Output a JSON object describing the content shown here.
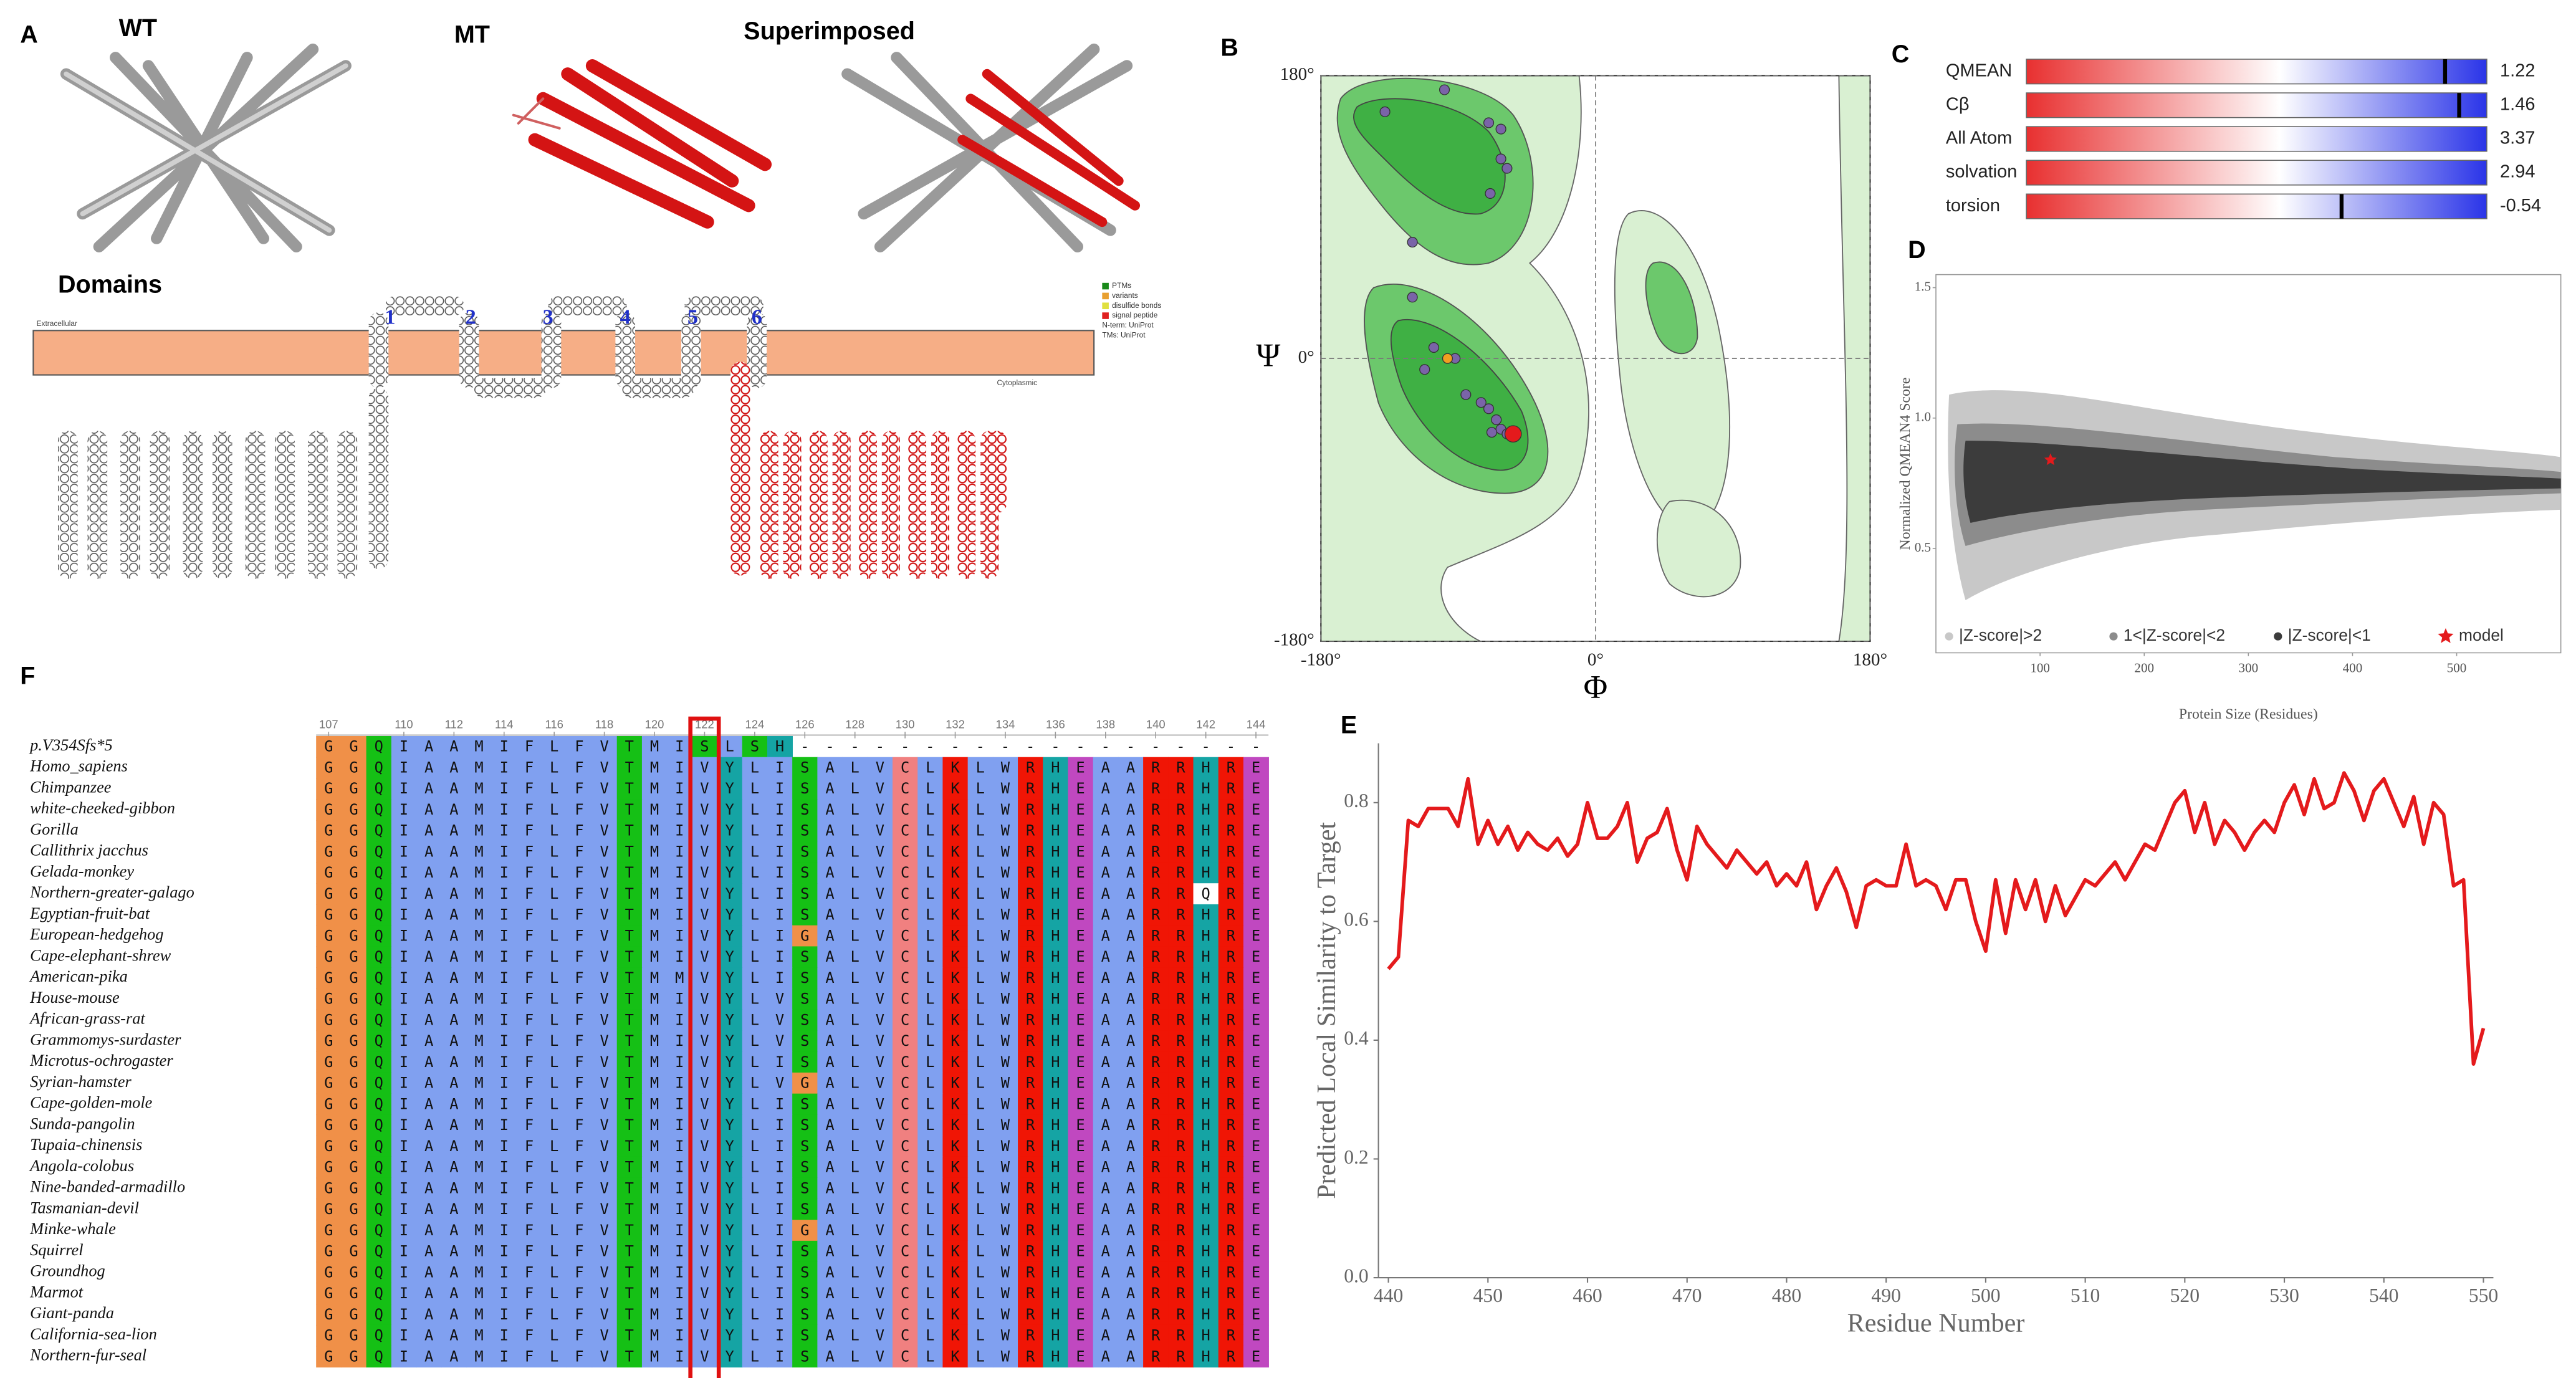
{
  "panel_labels": [
    "A",
    "B",
    "C",
    "D",
    "E",
    "F"
  ],
  "panel_a": {
    "titles": [
      "WT",
      "MT",
      "Superimposed"
    ],
    "domains_title": "Domains",
    "topology": {
      "helix_numbers": [
        "1",
        "2",
        "3",
        "4",
        "5",
        "6"
      ],
      "extracellular": "Extracellular",
      "cytoplasmic": "Cytoplasmic",
      "legend": [
        "PTMs",
        "variants",
        "disulfide bonds",
        "signal peptide",
        "N-term: UniProt",
        "TMs: UniProt"
      ]
    }
  },
  "chart_data": [
    {
      "type": "scatter",
      "xlabel": "Φ",
      "ylabel": "Ψ",
      "xlim": [
        -180,
        180
      ],
      "ylim": [
        -180,
        180
      ],
      "xticks": [
        {
          "value": -180,
          "label": "-180°"
        },
        {
          "value": 0,
          "label": "0°"
        },
        {
          "value": 180,
          "label": "180°"
        }
      ],
      "yticks": [
        {
          "value": -180,
          "label": "-180°"
        },
        {
          "value": 0,
          "label": "0°"
        },
        {
          "value": 180,
          "label": "180°"
        }
      ],
      "series": [
        {
          "color": "#7a64a8",
          "x": [
            -99,
            -138,
            -70,
            -62,
            -62,
            -58,
            -69,
            -120,
            -120,
            -106,
            -92,
            -112,
            -85,
            -75,
            -70,
            -65,
            -62,
            -68,
            -58
          ],
          "y": [
            171,
            157,
            150,
            146,
            127,
            121,
            105,
            74,
            39,
            7,
            0,
            -7,
            -23,
            -28,
            -32,
            -39,
            -45,
            -47,
            -48
          ]
        },
        {
          "color": "#f0a020",
          "x": [
            -97
          ],
          "y": [
            0
          ]
        },
        {
          "color": "#e41a1c",
          "x": [
            -54
          ],
          "y": [
            -48
          ]
        }
      ]
    },
    {
      "type": "gauge",
      "categories": [
        "QMEAN",
        "Cβ",
        "All Atom",
        "solvation",
        "torsion"
      ],
      "values": [
        1.22,
        1.46,
        3.37,
        2.94,
        -0.54
      ],
      "xlim": [
        -5.9,
        1.93
      ]
    },
    {
      "type": "scatter",
      "xlabel": "Protein Size (Residues)",
      "ylabel": "Normalized QMEAN4 Score",
      "xlim": [
        0,
        600
      ],
      "ylim": [
        0.1,
        1.55
      ],
      "xticks": [
        100,
        200,
        300,
        400,
        500
      ],
      "yticks": [
        0.5,
        {
          "value": 1,
          "label": "1.0"
        },
        1.5
      ],
      "legend": [
        {
          "label": "|Z-score|>2",
          "color": "#c8c8c8"
        },
        {
          "label": "1<|Z-score|<2",
          "color": "#8c8c8c"
        },
        {
          "label": "|Z-score|<1",
          "color": "#3c3c3c"
        },
        {
          "label": "model",
          "color": "#e41a1c"
        }
      ],
      "series": [
        {
          "color": "#e41a1c",
          "x": [
            110
          ],
          "y": [
            0.84
          ]
        }
      ]
    },
    {
      "type": "line",
      "xlabel": "Residue Number",
      "ylabel": "Predicted Local Similarity to Target",
      "color": "#e41a1c",
      "xlim": [
        439,
        551
      ],
      "ylim": [
        0,
        0.9
      ],
      "xticks": [
        440,
        450,
        460,
        470,
        480,
        490,
        500,
        510,
        520,
        530,
        540,
        550
      ],
      "yticks": [
        {
          "value": 0,
          "label": "0.0"
        },
        0.2,
        0.4,
        0.6,
        0.8
      ],
      "x": [
        440,
        441,
        442,
        443,
        444,
        445,
        446,
        447,
        448,
        449,
        450,
        451,
        452,
        453,
        454,
        455,
        456,
        457,
        458,
        459,
        460,
        461,
        462,
        463,
        464,
        465,
        466,
        467,
        468,
        469,
        470,
        471,
        472,
        473,
        474,
        475,
        476,
        477,
        478,
        479,
        480,
        481,
        482,
        483,
        484,
        485,
        486,
        487,
        488,
        489,
        490,
        491,
        492,
        493,
        494,
        495,
        496,
        497,
        498,
        499,
        500,
        501,
        502,
        503,
        504,
        505,
        506,
        507,
        508,
        509,
        510,
        511,
        512,
        513,
        514,
        515,
        516,
        517,
        518,
        519,
        520,
        521,
        522,
        523,
        524,
        525,
        526,
        527,
        528,
        529,
        530,
        531,
        532,
        533,
        534,
        535,
        536,
        537,
        538,
        539,
        540,
        541,
        542,
        543,
        544,
        545,
        546,
        547,
        548,
        549,
        550
      ],
      "values": [
        0.52,
        0.54,
        0.77,
        0.76,
        0.79,
        0.79,
        0.79,
        0.76,
        0.84,
        0.73,
        0.77,
        0.73,
        0.76,
        0.72,
        0.75,
        0.73,
        0.72,
        0.74,
        0.71,
        0.73,
        0.8,
        0.74,
        0.74,
        0.76,
        0.8,
        0.7,
        0.74,
        0.75,
        0.79,
        0.72,
        0.67,
        0.76,
        0.73,
        0.71,
        0.69,
        0.72,
        0.7,
        0.68,
        0.7,
        0.66,
        0.68,
        0.66,
        0.7,
        0.62,
        0.66,
        0.69,
        0.65,
        0.59,
        0.66,
        0.67,
        0.66,
        0.66,
        0.73,
        0.66,
        0.67,
        0.66,
        0.62,
        0.67,
        0.67,
        0.6,
        0.55,
        0.67,
        0.58,
        0.67,
        0.62,
        0.67,
        0.6,
        0.66,
        0.61,
        0.64,
        0.67,
        0.66,
        0.68,
        0.7,
        0.67,
        0.7,
        0.73,
        0.72,
        0.76,
        0.8,
        0.82,
        0.75,
        0.8,
        0.73,
        0.77,
        0.75,
        0.72,
        0.75,
        0.77,
        0.75,
        0.8,
        0.83,
        0.78,
        0.84,
        0.79,
        0.8,
        0.85,
        0.82,
        0.77,
        0.82,
        0.84,
        0.8,
        0.76,
        0.81,
        0.73,
        0.8,
        0.78,
        0.66,
        0.67,
        0.36,
        0.42
      ]
    }
  ],
  "alignment": {
    "first_position": 107,
    "highlight": 122,
    "ruler": [
      107,
      110,
      112,
      114,
      116,
      118,
      120,
      122,
      124,
      126,
      128,
      130,
      132,
      134,
      136,
      138,
      140,
      142,
      144
    ],
    "rows": [
      {
        "name": "p.V354Sfs*5",
        "seq": "GGQIAAMIFLFVTMISLSH-------------------"
      },
      {
        "name": "Homo_sapiens",
        "seq": "GGQIAAMIFLFVTMIVYLISALVCLKLWRHEAARRHRE"
      },
      {
        "name": "Chimpanzee",
        "seq": "GGQIAAMIFLFVTMIVYLISALVCLKLWRHEAARRHRE"
      },
      {
        "name": "white-cheeked-gibbon",
        "seq": "GGQIAAMIFLFVTMIVYLISALVCLKLWRHEAARRHRE"
      },
      {
        "name": "Gorilla",
        "seq": "GGQIAAMIFLFVTMIVYLISALVCLKLWRHEAARRHRE"
      },
      {
        "name": "Callithrix jacchus",
        "seq": "GGQIAAMIFLFVTMIVYLISALVCLKLWRHEAARRHRE"
      },
      {
        "name": "Gelada-monkey",
        "seq": "GGQIAAMIFLFVTMIVYLISALVCLKLWRHEAARRHRE"
      },
      {
        "name": "Northern-greater-galago",
        "seq": "GGQIAAMIFLFVTMIVYLISALVCLKLWRHEAARRQRE"
      },
      {
        "name": "Egyptian-fruit-bat",
        "seq": "GGQIAAMIFLFVTMIVYLISALVCLKLWRHEAARRHRE"
      },
      {
        "name": "European-hedgehog",
        "seq": "GGQIAAMIFLFVTMIVYLIGALVCLKLWRHEAARRHRE"
      },
      {
        "name": "Cape-elephant-shrew",
        "seq": "GGQIAAMIFLFVTMIVYLISALVCLKLWRHEAARRHRE"
      },
      {
        "name": "American-pika",
        "seq": "GGQIAAMIFLFVTMMVYLISALVCLKLWRHEAARRHRE"
      },
      {
        "name": "House-mouse",
        "seq": "GGQIAAMIFLFVTMIVYLVSALVCLKLWRHEAARRHRE"
      },
      {
        "name": "African-grass-rat",
        "seq": "GGQIAAMIFLFVTMIVYLVSALVCLKLWRHEAARRHRE"
      },
      {
        "name": "Grammomys-surdaster",
        "seq": "GGQIAAMIFLFVTMIVYLVSALVCLKLWRHEAARRHRE"
      },
      {
        "name": "Microtus-ochrogaster",
        "seq": "GGQIAAMIFLFVTMIVYLISALVCLKLWRHEAARRHRE"
      },
      {
        "name": "Syrian-hamster",
        "seq": "GGQIAAMIFLFVTMIVYLVGALVCLKLWRHEAARRHRE"
      },
      {
        "name": "Cape-golden-mole",
        "seq": "GGQIAAMIFLFVTMIVYLISALVCLKLWRHEAARRHRE"
      },
      {
        "name": "Sunda-pangolin",
        "seq": "GGQIAAMIFLFVTMIVYLISALVCLKLWRHEAARRHRE"
      },
      {
        "name": "Tupaia-chinensis",
        "seq": "GGQIAAMIFLFVTMIVYLISALVCLKLWRHEAARRHRE"
      },
      {
        "name": "Angola-colobus",
        "seq": "GGQIAAMIFLFVTMIVYLISALVCLKLWRHEAARRHRE"
      },
      {
        "name": "Nine-banded-armadillo",
        "seq": "GGQIAAMIFLFVTMIVYLISALVCLKLWRHEAARRHRE"
      },
      {
        "name": "Tasmanian-devil",
        "seq": "GGQIAAMIFLFVTMIVYLISALVCLKLWRHEAARRHRE"
      },
      {
        "name": "Minke-whale",
        "seq": "GGQIAAMIFLFVTMIVYLIGALVCLKLWRHEAARRHRE"
      },
      {
        "name": "Squirrel",
        "seq": "GGQIAAMIFLFVTMIVYLISALVCLKLWRHEAARRHRE"
      },
      {
        "name": "Groundhog",
        "seq": "GGQIAAMIFLFVTMIVYLISALVCLKLWRHEAARRHRE"
      },
      {
        "name": "Marmot",
        "seq": "GGQIAAMIFLFVTMIVYLISALVCLKLWRHEAARRHRE"
      },
      {
        "name": "Giant-panda",
        "seq": "GGQIAAMIFLFVTMIVYLISALVCLKLWRHEAARRHRE"
      },
      {
        "name": "California-sea-lion",
        "seq": "GGQIAAMIFLFVTMIVYLISALVCLKLWRHEAARRHRE"
      },
      {
        "name": "Northern-fur-seal",
        "seq": "GGQIAAMIFLFVTMIVYLISALVCLKLWRHEAARRHRE"
      }
    ]
  }
}
